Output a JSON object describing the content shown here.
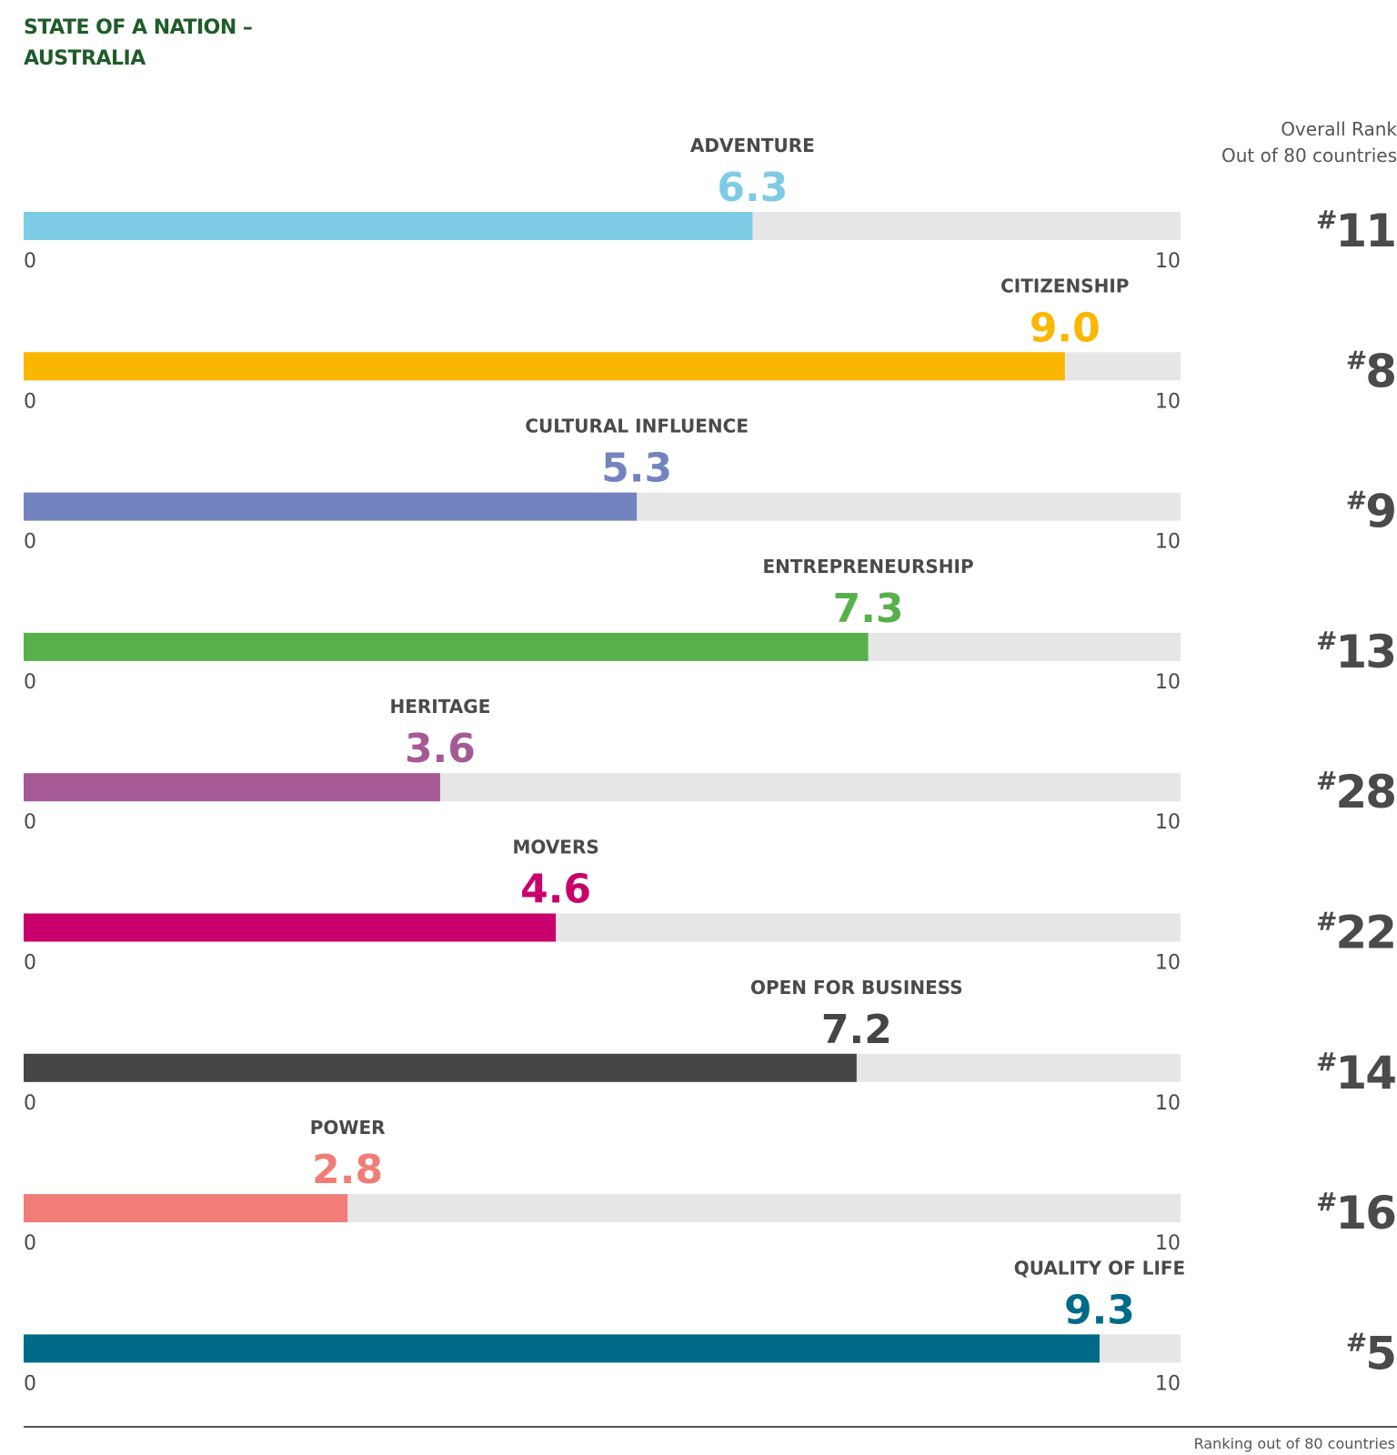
{
  "title_line1": "STATE OF A NATION –",
  "title_line2": "AUSTRALIA",
  "rank_header_line1": "Overall Rank",
  "rank_header_line2": "Out of 80 countries",
  "footer_note": "Ranking out of 80 countries",
  "chart_data": {
    "type": "bar",
    "orientation": "horizontal",
    "xlim": [
      0,
      10
    ],
    "axis_min_label": "0",
    "axis_max_label": "10",
    "track_color": "#e6e6e6",
    "categories": [
      "ADVENTURE",
      "CITIZENSHIP",
      "CULTURAL INFLUENCE",
      "ENTREPRENEURSHIP",
      "HERITAGE",
      "MOVERS",
      "OPEN FOR BUSINESS",
      "POWER",
      "QUALITY OF LIFE"
    ],
    "values": [
      6.3,
      9.0,
      5.3,
      7.3,
      3.6,
      4.6,
      7.2,
      2.8,
      9.3
    ],
    "value_labels": [
      "6.3",
      "9.0",
      "5.3",
      "7.3",
      "3.6",
      "4.6",
      "7.2",
      "2.8",
      "9.3"
    ],
    "colors": [
      "#7ecbe5",
      "#fbb600",
      "#7383bf",
      "#57b04b",
      "#a55a95",
      "#c9006b",
      "#454545",
      "#f07d78",
      "#006a89"
    ],
    "ranks": [
      "11",
      "8",
      "9",
      "13",
      "28",
      "22",
      "14",
      "16",
      "5"
    ],
    "rank_prefix": "#"
  }
}
